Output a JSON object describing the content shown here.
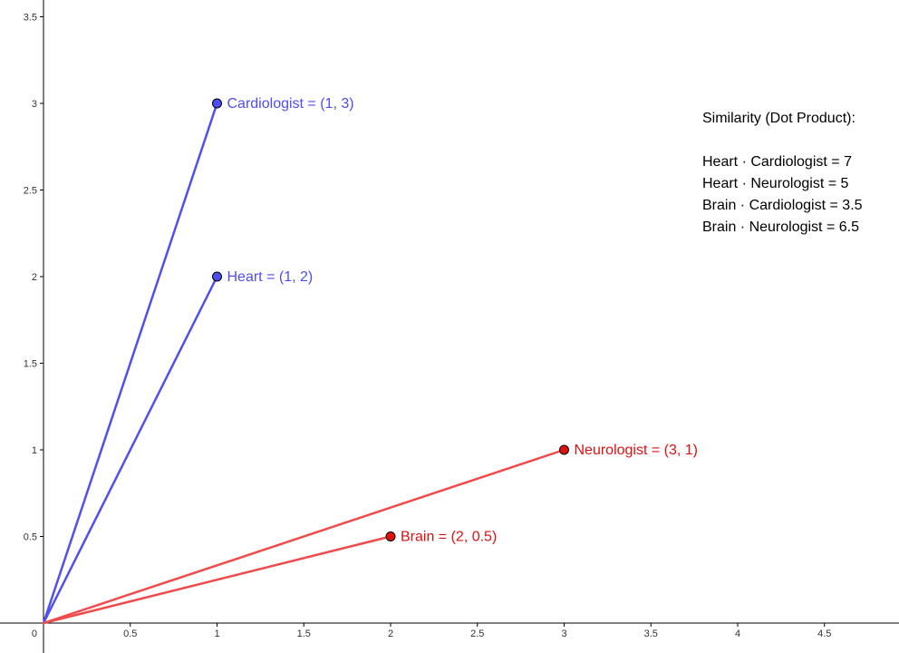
{
  "chart_data": {
    "type": "scatter",
    "title": "",
    "xlabel": "",
    "ylabel": "",
    "xlim": [
      0,
      4.9
    ],
    "ylim": [
      0,
      3.55
    ],
    "grid": false,
    "x_ticks": [
      0.5,
      1,
      1.5,
      2,
      2.5,
      3,
      3.5,
      4,
      4.5
    ],
    "y_ticks": [
      0.5,
      1,
      1.5,
      2,
      2.5,
      3,
      3.5
    ],
    "origin_label": "0",
    "vectors": [
      {
        "name": "Cardiologist",
        "x": 1,
        "y": 3,
        "label": "Cardiologist = (1, 3)",
        "color": "#4d4df2"
      },
      {
        "name": "Heart",
        "x": 1,
        "y": 2,
        "label": "Heart = (1, 2)",
        "color": "#4d4df2"
      },
      {
        "name": "Neurologist",
        "x": 3,
        "y": 1,
        "label": "Neurologist = (3, 1)",
        "color": "#e61e1e"
      },
      {
        "name": "Brain",
        "x": 2,
        "y": 0.5,
        "label": "Brain = (2, 0.5)",
        "color": "#e61e1e"
      }
    ]
  },
  "annotation": {
    "title": "Similarity (Dot Product):",
    "lines": [
      "Heart · Cardiologist = 7",
      "Heart · Neurologist = 5",
      "Brain · Cardiologist = 3.5",
      "Brain · Neurologist = 6.5"
    ]
  },
  "colors": {
    "blue_line": "#5050f0",
    "blue_point": "#4d4df2",
    "blue_text": "#4d4df2",
    "red_line": "#f04a4a",
    "red_point": "#e01010",
    "red_text": "#e01010",
    "axis": "#000000"
  }
}
